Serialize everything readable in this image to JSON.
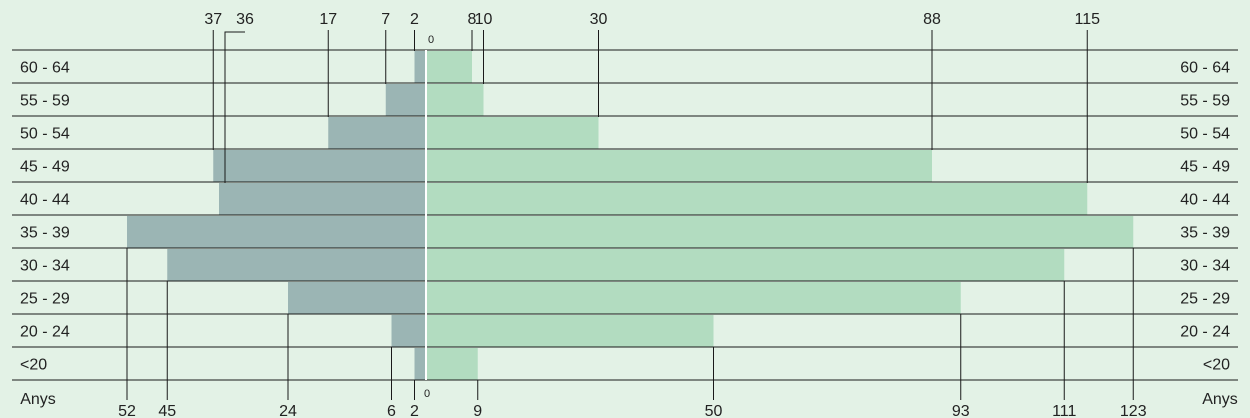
{
  "chart_data": {
    "type": "bar",
    "orientation": "horizontal-diverging",
    "categories": [
      "60 - 64",
      "55 - 59",
      "50 - 54",
      "45 - 49",
      "40 - 44",
      "35 - 39",
      "30 - 34",
      "25 - 29",
      "20 - 24",
      "<20"
    ],
    "series": [
      {
        "values": [
          2,
          7,
          17,
          37,
          36,
          52,
          45,
          24,
          6,
          2
        ],
        "side": "left"
      },
      {
        "values": [
          8,
          10,
          30,
          88,
          115,
          123,
          111,
          93,
          50,
          9
        ],
        "side": "right"
      }
    ],
    "axis_label": "Anys",
    "zero_label": "0",
    "colors": {
      "background": "#e3f2e6",
      "left_bar": "#9bb5b4",
      "right_bar": "#b2dcc0",
      "lines": "#1a1a1a",
      "divider": "#ffffff"
    }
  }
}
